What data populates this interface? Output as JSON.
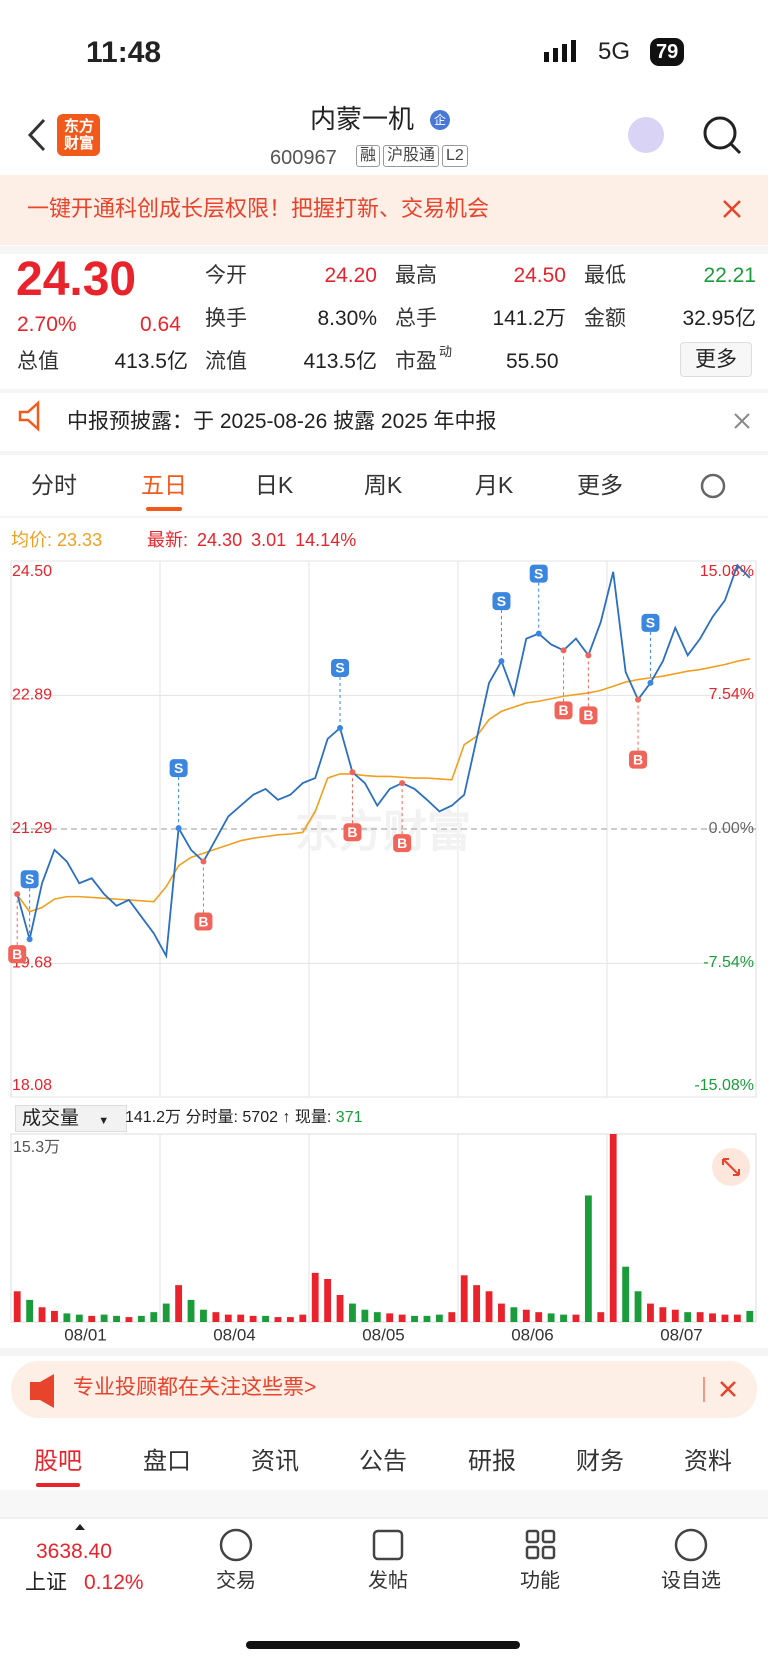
{
  "status": {
    "time": "11:48",
    "network": "5G",
    "battery": "79"
  },
  "header": {
    "logo": "东方财富",
    "title": "内蒙一机",
    "badge": "企",
    "code": "600967",
    "tags": [
      "融",
      "沪股通",
      "L2"
    ]
  },
  "banner": {
    "text": "一键开通科创成长层权限！把握打新、交易机会"
  },
  "quote": {
    "price": "24.30",
    "change_pct": "2.70%",
    "change": "0.64",
    "fields": [
      {
        "label": "今开",
        "value": "24.20",
        "color": "#e8232b"
      },
      {
        "label": "最高",
        "value": "24.50",
        "color": "#e8232b"
      },
      {
        "label": "最低",
        "value": "22.21",
        "color": "#1a9c3a"
      },
      {
        "label": "换手",
        "value": "8.30%",
        "color": "#222"
      },
      {
        "label": "总手",
        "value": "141.2万",
        "color": "#222"
      },
      {
        "label": "金额",
        "value": "32.95亿",
        "color": "#222"
      },
      {
        "label": "总值",
        "value": "413.5亿",
        "color": "#222"
      },
      {
        "label": "流值",
        "value": "413.5亿",
        "color": "#222"
      },
      {
        "label": "市盈",
        "sup": "动",
        "value": "55.50",
        "color": "#222"
      }
    ],
    "more": "更多"
  },
  "notice": {
    "text": "中报预披露：于 2025-08-26 披露 2025 年中报"
  },
  "tabs": {
    "items": [
      "分时",
      "五日",
      "日K",
      "周K",
      "月K",
      "更多"
    ],
    "active": 1
  },
  "info": {
    "avg_label": "均价:",
    "avg": "23.33",
    "last_label": "最新:",
    "last": "24.30",
    "change": "3.01",
    "pct": "14.14%"
  },
  "chart_data": {
    "type": "line",
    "watermark": "东方财富",
    "ylim": [
      18.08,
      24.5
    ],
    "yticks": [
      {
        "value": 24.5,
        "label": "24.50"
      },
      {
        "value": 22.89,
        "label": "22.89"
      },
      {
        "value": 21.29,
        "label": "21.29"
      },
      {
        "value": 19.68,
        "label": "19.68"
      },
      {
        "value": 18.08,
        "label": "18.08"
      }
    ],
    "y2lim": [
      -15.08,
      15.08
    ],
    "y2ticks": [
      {
        "value": 15.08,
        "label": "15.08%"
      },
      {
        "value": 7.54,
        "label": "7.54%"
      },
      {
        "value": 0,
        "label": "0.00%"
      },
      {
        "value": -7.54,
        "label": "-7.54%"
      },
      {
        "value": -15.08,
        "label": "-15.08%"
      }
    ],
    "series": [
      {
        "color": "#2a6fc0",
        "values": [
          20.51,
          19.97,
          20.64,
          21.04,
          20.9,
          20.64,
          20.7,
          20.51,
          20.37,
          20.44,
          20.24,
          20.04,
          19.77,
          21.3,
          21.04,
          20.9,
          21.17,
          21.44,
          21.57,
          21.7,
          21.77,
          21.64,
          21.7,
          21.84,
          21.9,
          22.37,
          22.5,
          21.97,
          21.84,
          21.57,
          21.77,
          21.84,
          21.77,
          21.64,
          21.5,
          21.57,
          21.7,
          22.37,
          23.04,
          23.3,
          22.9,
          23.57,
          23.63,
          23.5,
          23.43,
          23.57,
          23.37,
          23.77,
          24.37,
          23.17,
          22.84,
          23.04,
          23.3,
          23.7,
          23.37,
          23.57,
          23.83,
          24.03,
          24.45,
          24.3
        ]
      },
      {
        "color": "#f0a020",
        "values": [
          20.5,
          20.3,
          20.35,
          20.45,
          20.48,
          20.48,
          20.47,
          20.46,
          20.45,
          20.44,
          20.43,
          20.42,
          20.6,
          20.85,
          20.95,
          21.0,
          21.05,
          21.1,
          21.15,
          21.18,
          21.2,
          21.22,
          21.23,
          21.25,
          21.5,
          21.9,
          21.95,
          21.95,
          21.93,
          21.92,
          21.92,
          21.91,
          21.9,
          21.9,
          21.89,
          21.88,
          22.3,
          22.4,
          22.6,
          22.7,
          22.75,
          22.8,
          22.82,
          22.85,
          22.88,
          22.9,
          22.92,
          22.95,
          23.0,
          23.05,
          23.08,
          23.1,
          23.12,
          23.15,
          23.18,
          23.2,
          23.23,
          23.26,
          23.3,
          23.33
        ]
      }
    ],
    "trades": [
      {
        "label": "B",
        "index": 0
      },
      {
        "label": "S",
        "index": 1
      },
      {
        "label": "S",
        "index": 13
      },
      {
        "label": "B",
        "index": 15
      },
      {
        "label": "S",
        "index": 26
      },
      {
        "label": "B",
        "index": 27
      },
      {
        "label": "B",
        "index": 31
      },
      {
        "label": "S",
        "index": 39
      },
      {
        "label": "S",
        "index": 42
      },
      {
        "label": "B",
        "index": 44
      },
      {
        "label": "B",
        "index": 46
      },
      {
        "label": "B",
        "index": 50
      },
      {
        "label": "S",
        "index": 51
      }
    ]
  },
  "volume": {
    "title": "成交量",
    "summary": "141.2万",
    "detail_label": "分时量:",
    "detail": "5702",
    "now_label": "现量:",
    "now": "371",
    "ylim": [
      0,
      15.3
    ],
    "yticks": [
      {
        "value": 15.3,
        "label": "15.3万"
      }
    ],
    "dates": [
      "08/01",
      "08/04",
      "08/05",
      "08/06",
      "08/07"
    ],
    "values": [
      2.5,
      1.8,
      1.2,
      0.9,
      0.7,
      0.6,
      0.5,
      0.6,
      0.5,
      0.4,
      0.5,
      0.8,
      1.5,
      3.0,
      1.8,
      1.0,
      0.8,
      0.6,
      0.6,
      0.5,
      0.5,
      0.4,
      0.4,
      0.6,
      4.0,
      3.5,
      2.2,
      1.5,
      1.0,
      0.8,
      0.7,
      0.6,
      0.5,
      0.5,
      0.6,
      0.8,
      3.8,
      3.0,
      2.5,
      1.5,
      1.2,
      1.0,
      0.8,
      0.7,
      0.6,
      0.6,
      10.3,
      0.8,
      15.3,
      4.5,
      2.5,
      1.5,
      1.2,
      1.0,
      0.8,
      0.8,
      0.7,
      0.6,
      0.6,
      0.9
    ],
    "colors": [
      "#e8232b",
      "#1a9c3a",
      "#e8232b",
      "#e8232b",
      "#1a9c3a",
      "#1a9c3a",
      "#e8232b",
      "#1a9c3a",
      "#1a9c3a",
      "#e8232b",
      "#1a9c3a",
      "#1a9c3a",
      "#1a9c3a",
      "#e8232b",
      "#1a9c3a",
      "#1a9c3a",
      "#e8232b",
      "#e8232b",
      "#e8232b",
      "#e8232b",
      "#1a9c3a",
      "#e8232b",
      "#e8232b",
      "#e8232b",
      "#e8232b",
      "#e8232b",
      "#e8232b",
      "#1a9c3a",
      "#1a9c3a",
      "#1a9c3a",
      "#e8232b",
      "#e8232b",
      "#1a9c3a",
      "#1a9c3a",
      "#1a9c3a",
      "#e8232b",
      "#e8232b",
      "#e8232b",
      "#e8232b",
      "#e8232b",
      "#1a9c3a",
      "#e8232b",
      "#e8232b",
      "#1a9c3a",
      "#1a9c3a",
      "#e8232b",
      "#1a9c3a",
      "#e8232b",
      "#e8232b",
      "#1a9c3a",
      "#1a9c3a",
      "#e8232b",
      "#e8232b",
      "#e8232b",
      "#1a9c3a",
      "#e8232b",
      "#e8232b",
      "#e8232b",
      "#e8232b",
      "#1a9c3a"
    ]
  },
  "ad": {
    "text": "专业投顾都在关注这些票>"
  },
  "bottom_tabs": {
    "items": [
      "股吧",
      "盘口",
      "资讯",
      "公告",
      "研报",
      "财务",
      "资料"
    ],
    "active": 0
  },
  "footer": {
    "index_value": "3638.40",
    "index_name": "上证",
    "index_pct": "0.12%",
    "actions": [
      "交易",
      "发帖",
      "功能",
      "设自选"
    ]
  }
}
